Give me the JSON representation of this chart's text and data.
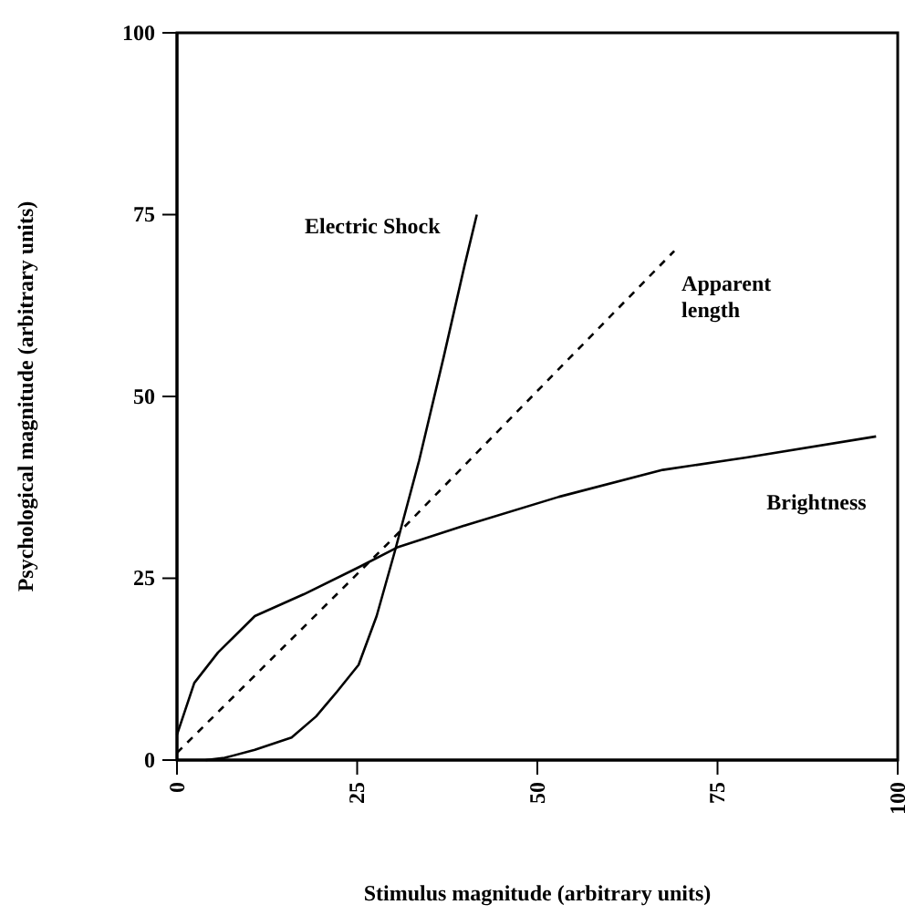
{
  "chart_data": {
    "type": "line",
    "xlabel": "Stimulus magnitude (arbitrary units)",
    "ylabel": "Psychological magnitude (arbitrary units)",
    "xlim": [
      0,
      100
    ],
    "ylim": [
      0,
      100
    ],
    "xticks": [
      0,
      25,
      50,
      75,
      100
    ],
    "yticks": [
      0,
      25,
      50,
      75,
      100
    ],
    "grid": false,
    "legend": false,
    "marker": "none",
    "series": [
      {
        "name": "Electric Shock",
        "color": "#000000",
        "line_style": "solid",
        "x": [
          4,
          6.6,
          10.8,
          15.9,
          19.3,
          22.2,
          25.2,
          27.7,
          30.2,
          33.6,
          37,
          39.9,
          41.6
        ],
        "values": [
          0,
          0.3,
          1.4,
          3.1,
          6,
          9.4,
          13.1,
          19.8,
          28.6,
          41.2,
          55.4,
          68,
          75
        ]
      },
      {
        "name": "Apparent length",
        "color": "#000000",
        "line_style": "dashed",
        "x": [
          0,
          30,
          69
        ],
        "values": [
          1,
          30.5,
          70
        ]
      },
      {
        "name": "Brightness",
        "color": "#000000",
        "line_style": "solid",
        "x": [
          0,
          2.4,
          5.7,
          10.8,
          17.6,
          25.2,
          30.7,
          40.4,
          53,
          67.4,
          79,
          97
        ],
        "values": [
          3.5,
          10.6,
          14.8,
          19.8,
          22.8,
          26.5,
          29.3,
          32.4,
          36.2,
          39.9,
          41.6,
          44.5
        ]
      }
    ]
  }
}
